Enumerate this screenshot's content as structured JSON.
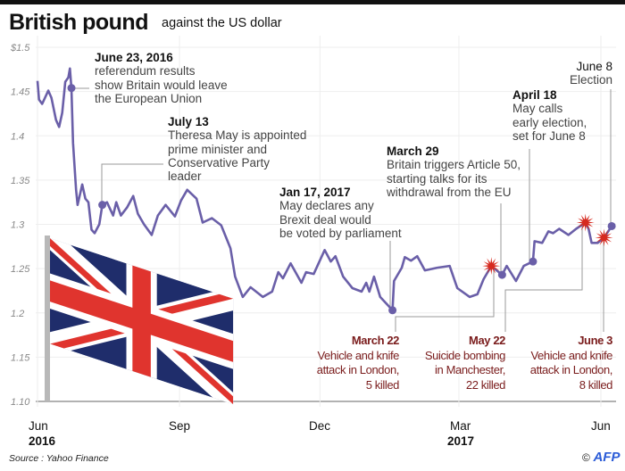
{
  "header": {
    "title": "British pound",
    "subtitle": "against the US dollar"
  },
  "chart_data": {
    "type": "line",
    "title": "British pound",
    "subtitle": "against the US dollar",
    "xlabel": "",
    "ylabel": "",
    "ylim": [
      1.1,
      1.5
    ],
    "xlim": [
      "2016-06-01",
      "2017-06-12"
    ],
    "y_ticks": [
      "$1.5",
      "1.45",
      "1.4",
      "1.35",
      "1.3",
      "1.25",
      "1.2",
      "1.15",
      "1.10"
    ],
    "y_tick_values": [
      1.5,
      1.45,
      1.4,
      1.35,
      1.3,
      1.25,
      1.2,
      1.15,
      1.1
    ],
    "x_ticks": [
      {
        "label": "Jun",
        "year": "2016",
        "date": "2016-06-01"
      },
      {
        "label": "Sep",
        "year": "",
        "date": "2016-09-01"
      },
      {
        "label": "Dec",
        "year": "",
        "date": "2016-12-01"
      },
      {
        "label": "Mar",
        "year": "2017",
        "date": "2017-03-01"
      },
      {
        "label": "Jun",
        "year": "",
        "date": "2017-06-01"
      }
    ],
    "grid": true,
    "line_color": "#6a5fa8",
    "series": [
      {
        "x": [
          "2016-06-01",
          "2016-06-02",
          "2016-06-04",
          "2016-06-08",
          "2016-06-10",
          "2016-06-13",
          "2016-06-15",
          "2016-06-17",
          "2016-06-19",
          "2016-06-21",
          "2016-06-22",
          "2016-06-23",
          "2016-06-24",
          "2016-06-26",
          "2016-06-27",
          "2016-06-30",
          "2016-07-02",
          "2016-07-04",
          "2016-07-06",
          "2016-07-08",
          "2016-07-11",
          "2016-07-13",
          "2016-07-16",
          "2016-07-20",
          "2016-07-22",
          "2016-07-25",
          "2016-07-29",
          "2016-08-02",
          "2016-08-05",
          "2016-08-09",
          "2016-08-14",
          "2016-08-18",
          "2016-08-23",
          "2016-08-29",
          "2016-09-02",
          "2016-09-06",
          "2016-09-12",
          "2016-09-16",
          "2016-09-22",
          "2016-09-28",
          "2016-10-04",
          "2016-10-07",
          "2016-10-12",
          "2016-10-17",
          "2016-10-25",
          "2016-10-31",
          "2016-11-04",
          "2016-11-07",
          "2016-11-12",
          "2016-11-19",
          "2016-11-22",
          "2016-11-27",
          "2016-12-04",
          "2016-12-08",
          "2016-12-11",
          "2016-12-16",
          "2016-12-22",
          "2016-12-28",
          "2016-12-31",
          "2017-01-02",
          "2017-01-05",
          "2017-01-09",
          "2017-01-17",
          "2017-01-18",
          "2017-01-23",
          "2017-01-25",
          "2017-01-29",
          "2017-02-02",
          "2017-02-07",
          "2017-02-15",
          "2017-02-23",
          "2017-02-28",
          "2017-03-08",
          "2017-03-13",
          "2017-03-17",
          "2017-03-22",
          "2017-03-29",
          "2017-04-01",
          "2017-04-07",
          "2017-04-12",
          "2017-04-18",
          "2017-04-19",
          "2017-04-24",
          "2017-04-28",
          "2017-05-01",
          "2017-05-05",
          "2017-05-11",
          "2017-05-16",
          "2017-05-22",
          "2017-05-24",
          "2017-05-26",
          "2017-05-30",
          "2017-06-03",
          "2017-06-08"
        ],
        "y": [
          1.462,
          1.441,
          1.436,
          1.451,
          1.443,
          1.418,
          1.41,
          1.426,
          1.461,
          1.466,
          1.476,
          1.454,
          1.392,
          1.339,
          1.322,
          1.345,
          1.329,
          1.325,
          1.294,
          1.29,
          1.3,
          1.322,
          1.325,
          1.31,
          1.325,
          1.31,
          1.319,
          1.332,
          1.312,
          1.3,
          1.288,
          1.31,
          1.322,
          1.309,
          1.327,
          1.339,
          1.329,
          1.302,
          1.307,
          1.299,
          1.273,
          1.241,
          1.218,
          1.229,
          1.218,
          1.224,
          1.246,
          1.239,
          1.256,
          1.234,
          1.246,
          1.244,
          1.271,
          1.258,
          1.264,
          1.241,
          1.228,
          1.224,
          1.234,
          1.224,
          1.241,
          1.218,
          1.203,
          1.236,
          1.251,
          1.263,
          1.259,
          1.264,
          1.248,
          1.251,
          1.253,
          1.228,
          1.218,
          1.221,
          1.238,
          1.253,
          1.243,
          1.253,
          1.236,
          1.253,
          1.258,
          1.281,
          1.279,
          1.292,
          1.29,
          1.295,
          1.288,
          1.295,
          1.302,
          1.295,
          1.279,
          1.279,
          1.285,
          1.298
        ]
      }
    ],
    "annotations": [
      {
        "date": "2016-06-23",
        "marker": "dot",
        "heading": "June 23, 2016",
        "lines": [
          "referendum results",
          "show Britain would leave",
          "the European Union"
        ]
      },
      {
        "date": "2016-07-13",
        "marker": "dot",
        "heading": "July 13",
        "lines": [
          "Theresa May is appointed",
          "prime minister and",
          "Conservative Party",
          "leader"
        ]
      },
      {
        "date": "2017-01-17",
        "marker": "dot",
        "heading": "Jan 17, 2017",
        "lines": [
          "May declares any",
          "Brexit deal would",
          "be voted by parliament"
        ]
      },
      {
        "date": "2017-03-29",
        "marker": "dot",
        "heading": "March 29",
        "lines": [
          "Britain triggers Article 50,",
          "starting talks for its",
          "withdrawal from the EU"
        ]
      },
      {
        "date": "2017-04-18",
        "marker": "dot",
        "heading": "April 18",
        "lines": [
          "May calls",
          "early election,",
          "set for June 8"
        ]
      },
      {
        "date": "2017-06-08",
        "marker": "dot",
        "heading": "June 8",
        "lines": [
          "Election"
        ]
      },
      {
        "date": "2017-03-22",
        "marker": "star",
        "heading": "March 22",
        "lines": [
          "Vehicle and knife",
          "attack in London,",
          "5 killed"
        ]
      },
      {
        "date": "2017-05-22",
        "marker": "star",
        "heading": "May 22",
        "lines": [
          "Suicide bombing",
          "in Manchester,",
          "22 killed"
        ]
      },
      {
        "date": "2017-06-03",
        "marker": "star",
        "heading": "June 3",
        "lines": [
          "Vehicle and knife",
          "attack in London,",
          "8 killed"
        ]
      }
    ],
    "colors": {
      "line": "#6a5fa8",
      "marker": "#6a5fa8",
      "attack_star": "#d62a1f",
      "attack_text": "#7a1c1c"
    }
  },
  "footer": {
    "source": "Source : Yahoo Finance",
    "copyright": "©",
    "logo": "AFP"
  }
}
